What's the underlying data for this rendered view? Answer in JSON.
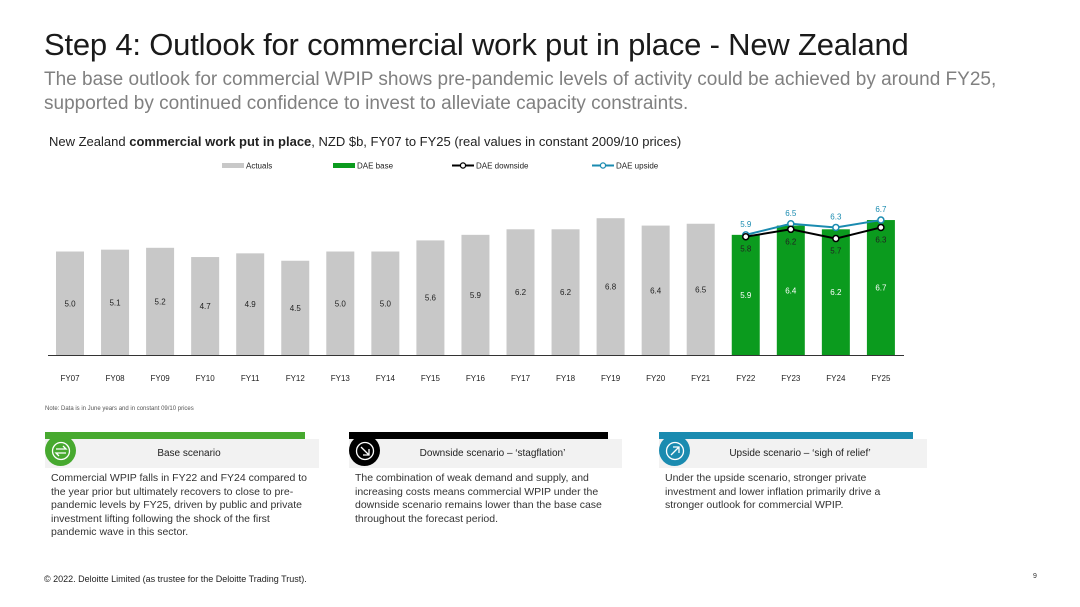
{
  "title": "Step 4: Outlook for commercial work put in place - New Zealand",
  "subtitle": "The base outlook for commercial WPIP shows pre-pandemic levels of activity could be achieved by around FY25, supported by continued confidence to invest to alleviate capacity constraints.",
  "chart_heading": {
    "prefix": "New Zealand ",
    "bold": "commercial work put in place",
    "suffix": ", NZD $b, FY07 to FY25 (real values in constant 2009/10 prices)"
  },
  "note": "Note: Data is in June years and in constant 09/10 prices",
  "chart_data": {
    "type": "bar",
    "categories": [
      "FY07",
      "FY08",
      "FY09",
      "FY10",
      "FY11",
      "FY12",
      "FY13",
      "FY14",
      "FY15",
      "FY16",
      "FY17",
      "FY18",
      "FY19",
      "FY20",
      "FY21",
      "FY22",
      "FY23",
      "FY24",
      "FY25"
    ],
    "series": [
      {
        "name": "Actuals",
        "type": "bar",
        "color": "#c8c8c8",
        "values": [
          5.0,
          5.1,
          5.2,
          4.7,
          4.9,
          4.5,
          5.0,
          5.0,
          5.6,
          5.9,
          6.2,
          6.2,
          6.8,
          6.4,
          6.5,
          null,
          null,
          null,
          null
        ]
      },
      {
        "name": "DAE base",
        "type": "bar",
        "color": "#0b9b1e",
        "values": [
          null,
          null,
          null,
          null,
          null,
          null,
          null,
          null,
          null,
          null,
          null,
          null,
          null,
          null,
          null,
          5.9,
          6.4,
          6.2,
          6.7
        ]
      },
      {
        "name": "DAE downside",
        "type": "line",
        "color": "#000000",
        "values": [
          null,
          null,
          null,
          null,
          null,
          null,
          null,
          null,
          null,
          null,
          null,
          null,
          null,
          null,
          null,
          5.8,
          6.2,
          5.7,
          6.3
        ]
      },
      {
        "name": "DAE upside",
        "type": "line",
        "color": "#1a8bb0",
        "values": [
          null,
          null,
          null,
          null,
          null,
          null,
          null,
          null,
          null,
          null,
          null,
          null,
          null,
          null,
          null,
          5.9,
          6.5,
          6.3,
          6.7
        ]
      }
    ],
    "legend_position": "top",
    "grid": false
  },
  "cards": [
    {
      "title": "Base scenario",
      "color": "#47a92f",
      "icon": "swap-arrows-icon",
      "text": "Commercial WPIP falls in FY22 and FY24 compared to the year prior but ultimately recovers to close to pre-pandemic levels by FY25, driven by public and private investment lifting following the shock of the first pandemic wave in this sector."
    },
    {
      "title": "Downside scenario – ‘stagflation’",
      "color": "#000000",
      "icon": "arrow-down-right-icon",
      "text": "The combination of weak demand and supply, and increasing costs means commercial WPIP under the downside scenario remains lower than the base case throughout the forecast period."
    },
    {
      "title": "Upside scenario – ‘sigh of relief’",
      "color": "#1a8bb0",
      "icon": "arrow-up-right-icon",
      "text": "Under the upside scenario, stronger private investment and lower inflation primarily drive a stronger outlook for commercial WPIP."
    }
  ],
  "footer": "© 2022. Deloitte Limited (as trustee for the Deloitte Trading Trust).",
  "page_number": "9"
}
